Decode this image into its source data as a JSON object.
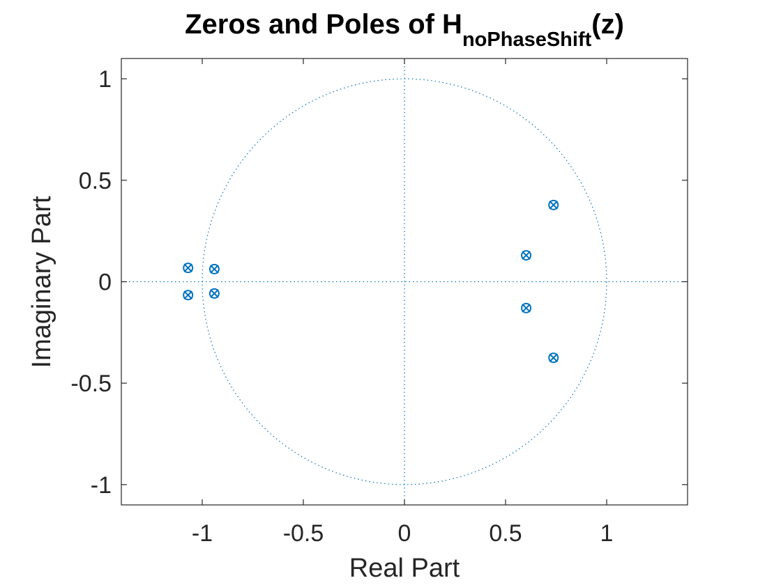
{
  "chart_data": {
    "type": "scatter",
    "title": {
      "main": "Zeros and Poles of H",
      "subscript": "noPhaseShift",
      "suffix": "(z)"
    },
    "xlabel": "Real Part",
    "ylabel": "Imaginary Part",
    "xlim": [
      -1.4,
      1.4
    ],
    "ylim": [
      -1.1,
      1.1
    ],
    "xticks": [
      -1,
      -0.5,
      0,
      0.5,
      1
    ],
    "xtick_labels": [
      "-1",
      "-0.5",
      "0",
      "0.5",
      "1"
    ],
    "yticks": [
      -1,
      -0.5,
      0,
      0.5,
      1
    ],
    "ytick_labels": [
      "-1",
      "-0.5",
      "0",
      "0.5",
      "1"
    ],
    "grid": false,
    "unit_circle": true,
    "color": "#0072BD",
    "axis_color": "#262626",
    "zeros": [
      {
        "re": -1.07,
        "im": 0.068
      },
      {
        "re": -1.07,
        "im": -0.066
      },
      {
        "re": -0.94,
        "im": 0.062
      },
      {
        "re": -0.94,
        "im": -0.058
      },
      {
        "re": 0.602,
        "im": 0.13
      },
      {
        "re": 0.602,
        "im": -0.13
      },
      {
        "re": 0.737,
        "im": 0.378
      },
      {
        "re": 0.737,
        "im": -0.375
      }
    ],
    "poles": [
      {
        "re": -1.07,
        "im": 0.068
      },
      {
        "re": -1.07,
        "im": -0.066
      },
      {
        "re": -0.94,
        "im": 0.062
      },
      {
        "re": -0.94,
        "im": -0.058
      },
      {
        "re": 0.602,
        "im": 0.13
      },
      {
        "re": 0.602,
        "im": -0.13
      },
      {
        "re": 0.737,
        "im": 0.378
      },
      {
        "re": 0.737,
        "im": -0.375
      }
    ]
  }
}
